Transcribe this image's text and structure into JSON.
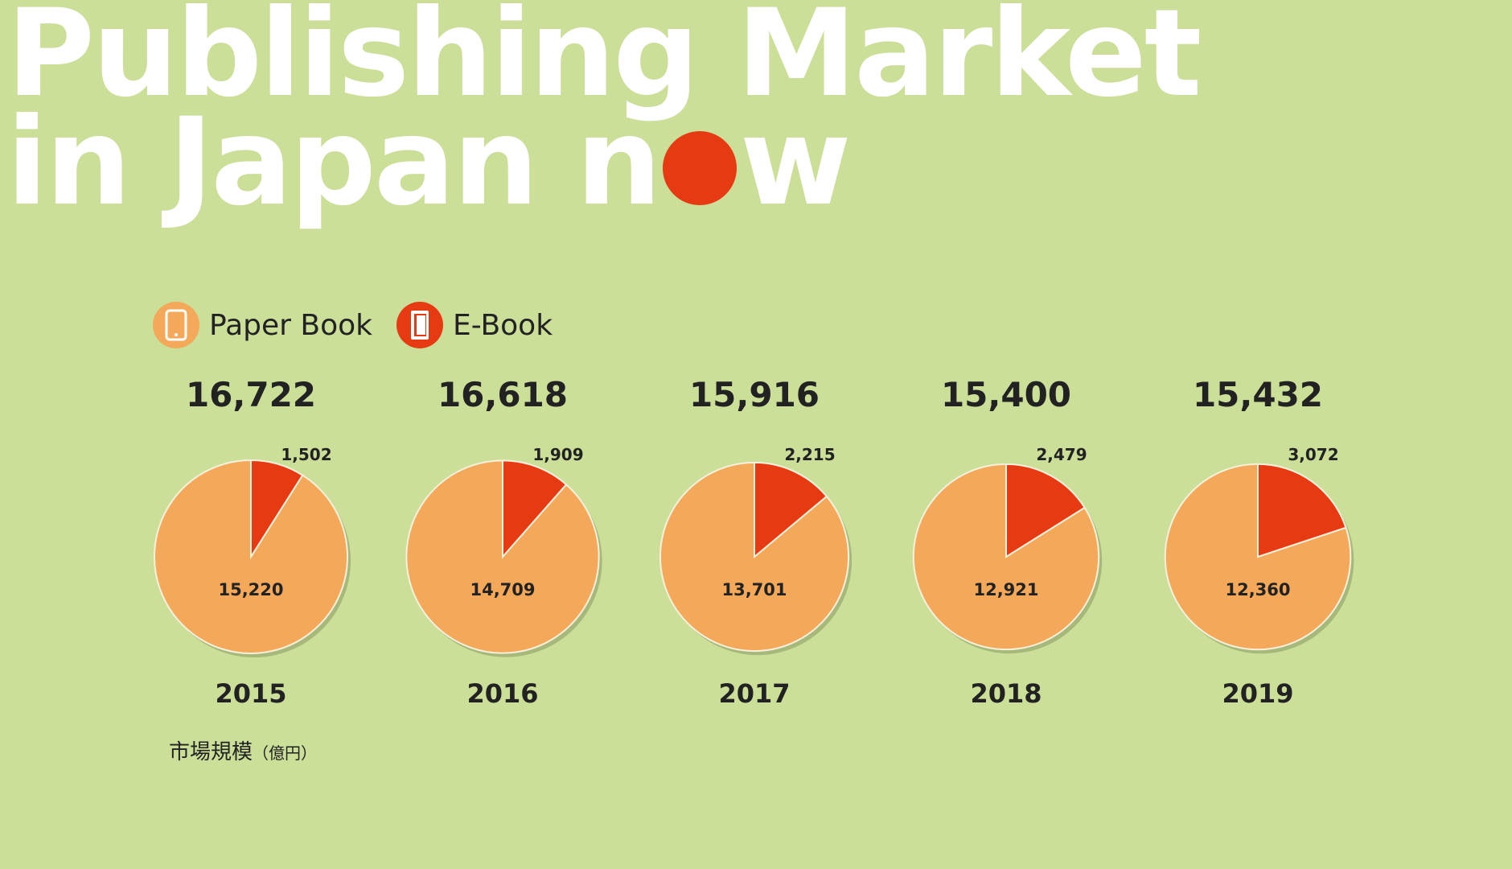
{
  "title": {
    "line1": "Publishing Market",
    "line2_pre": "in Japan n",
    "line2_post": "w"
  },
  "colors": {
    "paper": "#f4a85a",
    "ebook": "#e63a13",
    "dot": "#e63a13"
  },
  "chart_data": {
    "type": "pie",
    "legend": [
      {
        "name": "Paper Book",
        "icon": "tablet-icon",
        "color": "#f4a85a"
      },
      {
        "name": "E-Book",
        "icon": "book-icon",
        "color": "#e63a13"
      }
    ],
    "unit_label": "市場規模",
    "unit_suffix": "（億円）",
    "charts": [
      {
        "year": "2015",
        "total": "16,722",
        "paper": 15220,
        "ebook": 1502,
        "paper_label": "15,220",
        "ebook_label": "1,502"
      },
      {
        "year": "2016",
        "total": "16,618",
        "paper": 14709,
        "ebook": 1909,
        "paper_label": "14,709",
        "ebook_label": "1,909"
      },
      {
        "year": "2017",
        "total": "15,916",
        "paper": 13701,
        "ebook": 2215,
        "paper_label": "13,701",
        "ebook_label": "2,215"
      },
      {
        "year": "2018",
        "total": "15,400",
        "paper": 12921,
        "ebook": 2479,
        "paper_label": "12,921",
        "ebook_label": "2,479"
      },
      {
        "year": "2019",
        "total": "15,432",
        "paper": 12360,
        "ebook": 3072,
        "paper_label": "12,360",
        "ebook_label": "3,072"
      }
    ]
  }
}
